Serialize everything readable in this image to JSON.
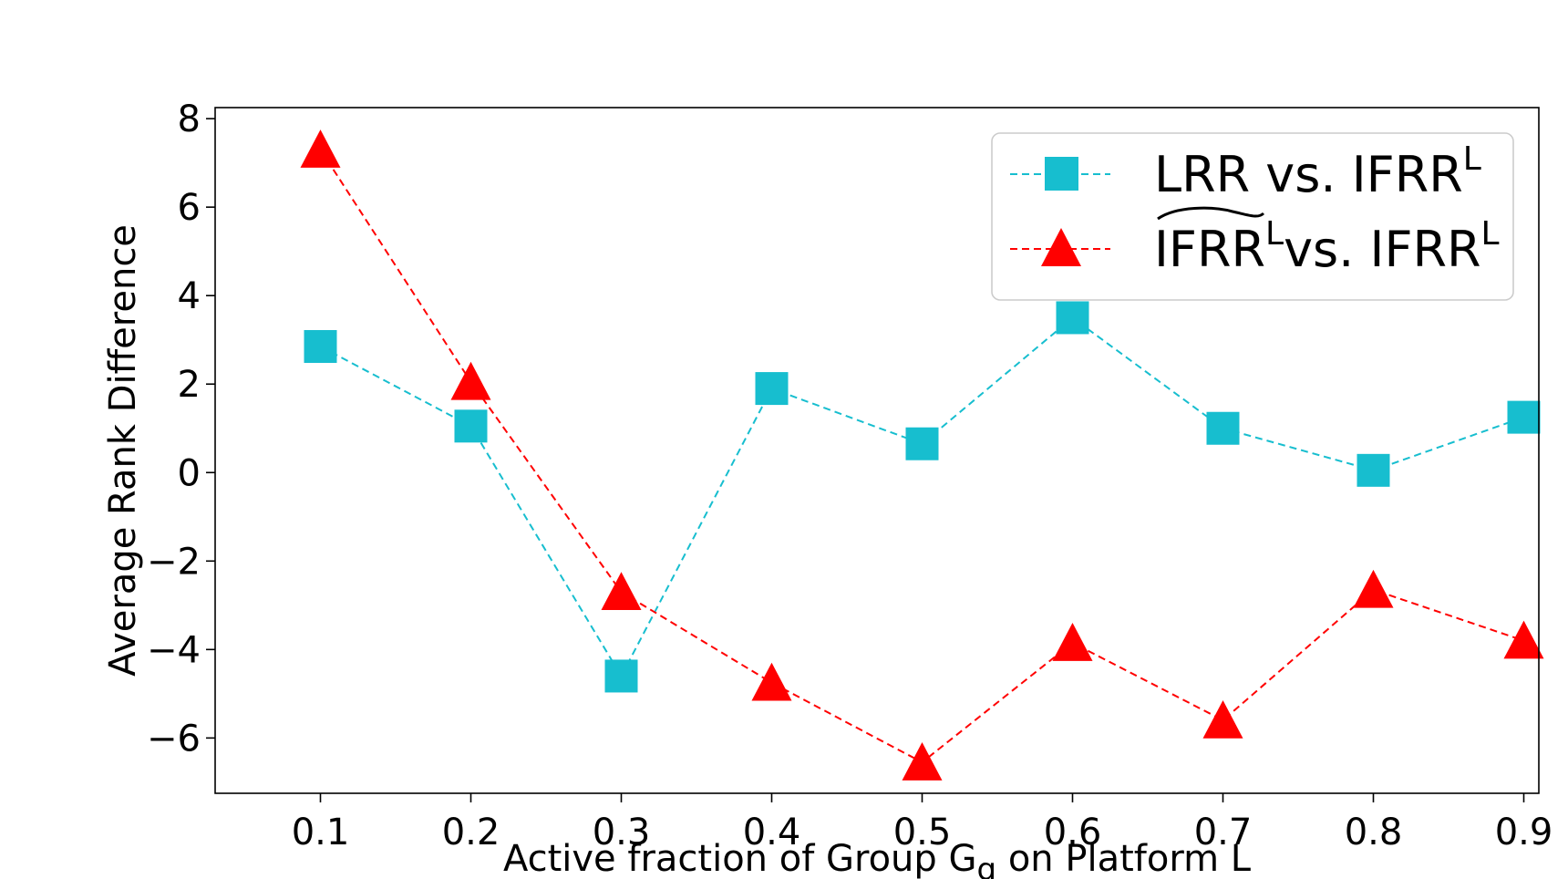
{
  "chart_data": {
    "type": "line",
    "title": "",
    "xlabel": "Active fraction of Group G",
    "xlabel_subscript": "g",
    "xlabel_suffix": " on Platform L",
    "ylabel": "Average Rank Difference",
    "x": [
      0.1,
      0.2,
      0.3,
      0.4,
      0.5,
      0.6,
      0.7,
      0.8,
      0.9
    ],
    "x_tick_labels": [
      "0.1",
      "0.2",
      "0.3",
      "0.4",
      "0.5",
      "0.6",
      "0.7",
      "0.8",
      "0.9"
    ],
    "y_ticks": [
      8,
      6,
      4,
      2,
      0,
      -2,
      -4,
      -6
    ],
    "y_tick_labels": [
      "8",
      "6",
      "4",
      "2",
      "0",
      "−2",
      "−4",
      "−6"
    ],
    "xlim": [
      0.03,
      0.91
    ],
    "ylim": [
      -7.25,
      8.25
    ],
    "grid": false,
    "legend_position": "top-right",
    "series": [
      {
        "name": "LRR vs. IFRR^L",
        "legend_main": "LRR vs. IFRR",
        "legend_sup": "L",
        "color": "#17becf",
        "marker": "square",
        "linestyle": "dashed",
        "values": [
          2.85,
          1.05,
          -4.6,
          1.9,
          0.65,
          3.5,
          1.0,
          0.05,
          1.25
        ]
      },
      {
        "name": "~IFRR^L vs. IFRR^L",
        "legend_part1": "IFRR",
        "legend_sup1": "L",
        "legend_part2": "vs. IFRR",
        "legend_sup2": "L",
        "color": "#ff0000",
        "marker": "triangle",
        "linestyle": "dashed",
        "values": [
          7.3,
          2.05,
          -2.7,
          -4.75,
          -6.55,
          -3.85,
          -5.6,
          -2.65,
          -3.8
        ]
      }
    ]
  }
}
